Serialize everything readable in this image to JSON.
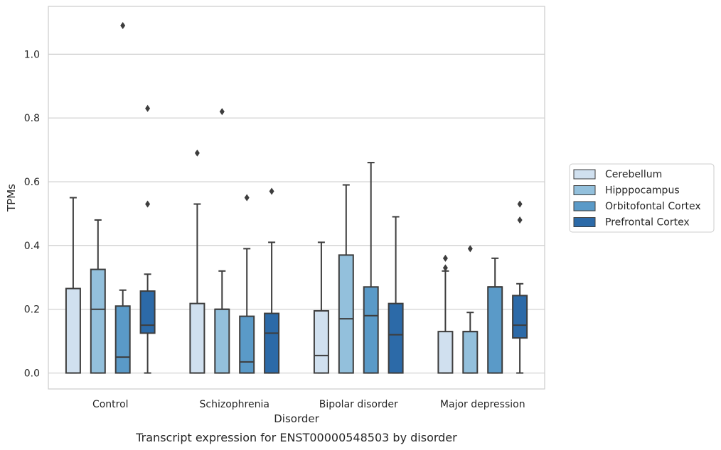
{
  "chart_data": {
    "type": "boxplot",
    "caption": "Transcript expression for ENST00000548503 by disorder",
    "xlabel": "Disorder",
    "ylabel": "TPMs",
    "ylim": [
      -0.05,
      1.15
    ],
    "yticks": [
      "0.0",
      "0.2",
      "0.4",
      "0.6",
      "0.8",
      "1.0"
    ],
    "categories": [
      "Control",
      "Schizophrenia",
      "Bipolar disorder",
      "Major depression"
    ],
    "grid": true,
    "legend_position": "right",
    "series": [
      {
        "name": "Cerebellum",
        "color": "#d0e0ef",
        "boxes": [
          {
            "q1": 0.0,
            "median": 0.0,
            "q3": 0.265,
            "whisker_low": 0.0,
            "whisker_high": 0.55,
            "outliers": []
          },
          {
            "q1": 0.0,
            "median": 0.0,
            "q3": 0.218,
            "whisker_low": 0.0,
            "whisker_high": 0.53,
            "outliers": [
              0.69
            ]
          },
          {
            "q1": 0.0,
            "median": 0.055,
            "q3": 0.195,
            "whisker_low": 0.0,
            "whisker_high": 0.41,
            "outliers": []
          },
          {
            "q1": 0.0,
            "median": 0.0,
            "q3": 0.13,
            "whisker_low": 0.0,
            "whisker_high": 0.32,
            "outliers": [
              0.33,
              0.36
            ]
          }
        ]
      },
      {
        "name": "Hipppocampus",
        "color": "#93c0dc",
        "boxes": [
          {
            "q1": 0.0,
            "median": 0.2,
            "q3": 0.325,
            "whisker_low": 0.0,
            "whisker_high": 0.48,
            "outliers": []
          },
          {
            "q1": 0.0,
            "median": 0.2,
            "q3": 0.2,
            "whisker_low": 0.0,
            "whisker_high": 0.32,
            "outliers": [
              0.82
            ]
          },
          {
            "q1": 0.0,
            "median": 0.17,
            "q3": 0.37,
            "whisker_low": 0.0,
            "whisker_high": 0.59,
            "outliers": []
          },
          {
            "q1": 0.0,
            "median": 0.13,
            "q3": 0.13,
            "whisker_low": 0.0,
            "whisker_high": 0.19,
            "outliers": [
              0.39
            ]
          }
        ]
      },
      {
        "name": "Orbitofontal Cortex",
        "color": "#5a9ac8",
        "boxes": [
          {
            "q1": 0.0,
            "median": 0.05,
            "q3": 0.21,
            "whisker_low": 0.0,
            "whisker_high": 0.26,
            "outliers": [
              1.09
            ]
          },
          {
            "q1": 0.0,
            "median": 0.035,
            "q3": 0.178,
            "whisker_low": 0.0,
            "whisker_high": 0.39,
            "outliers": [
              0.55
            ]
          },
          {
            "q1": 0.0,
            "median": 0.18,
            "q3": 0.27,
            "whisker_low": 0.0,
            "whisker_high": 0.66,
            "outliers": []
          },
          {
            "q1": 0.0,
            "median": 0.27,
            "q3": 0.27,
            "whisker_low": 0.0,
            "whisker_high": 0.36,
            "outliers": []
          }
        ]
      },
      {
        "name": "Prefrontal Cortex",
        "color": "#2c6aa8",
        "boxes": [
          {
            "q1": 0.125,
            "median": 0.15,
            "q3": 0.257,
            "whisker_low": 0.0,
            "whisker_high": 0.31,
            "outliers": [
              0.53,
              0.83
            ]
          },
          {
            "q1": 0.0,
            "median": 0.125,
            "q3": 0.187,
            "whisker_low": 0.0,
            "whisker_high": 0.41,
            "outliers": [
              0.57
            ]
          },
          {
            "q1": 0.0,
            "median": 0.12,
            "q3": 0.218,
            "whisker_low": 0.0,
            "whisker_high": 0.49,
            "outliers": []
          },
          {
            "q1": 0.11,
            "median": 0.15,
            "q3": 0.243,
            "whisker_low": 0.0,
            "whisker_high": 0.28,
            "outliers": [
              0.48,
              0.53
            ]
          }
        ]
      }
    ]
  }
}
